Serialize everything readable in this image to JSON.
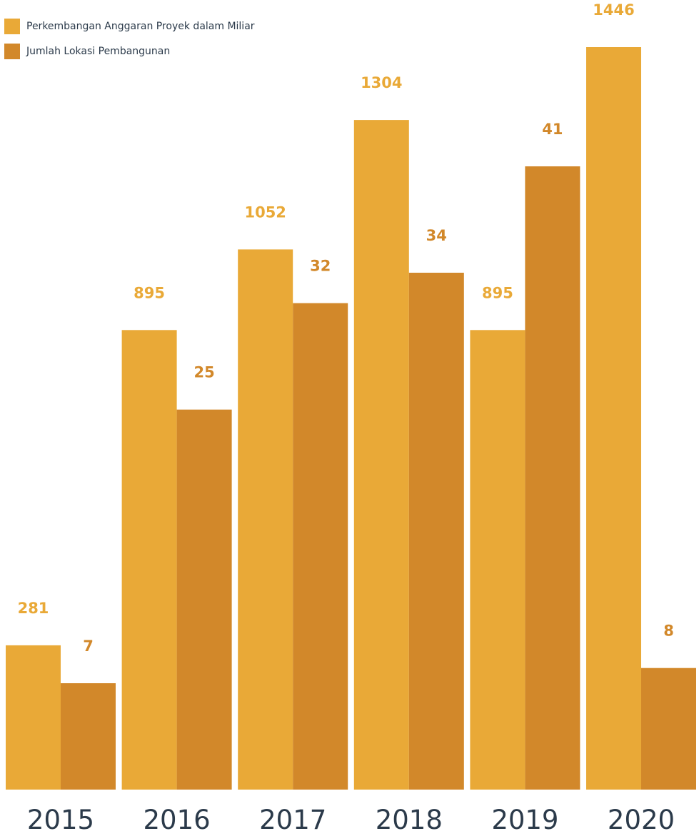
{
  "chart_data": {
    "type": "bar",
    "categories": [
      "2015",
      "2016",
      "2017",
      "2018",
      "2019",
      "2020"
    ],
    "series": [
      {
        "name": "Perkembangan Anggaran Proyek dalam Miliar",
        "values": [
          281,
          895,
          1052,
          1304,
          895,
          1446
        ],
        "labels": [
          "281",
          "895",
          "1052",
          "1304",
          "895",
          "1446"
        ],
        "color": "#E9A937"
      },
      {
        "name": "Jumlah Lokasi Pembangunan",
        "values": [
          7,
          25,
          32,
          34,
          41,
          8
        ],
        "labels": [
          "7",
          "25",
          "32",
          "34",
          "41",
          "8"
        ],
        "color": "#D2882A"
      }
    ],
    "grid": false,
    "legend_position": "top-left",
    "axes_visible": false
  }
}
